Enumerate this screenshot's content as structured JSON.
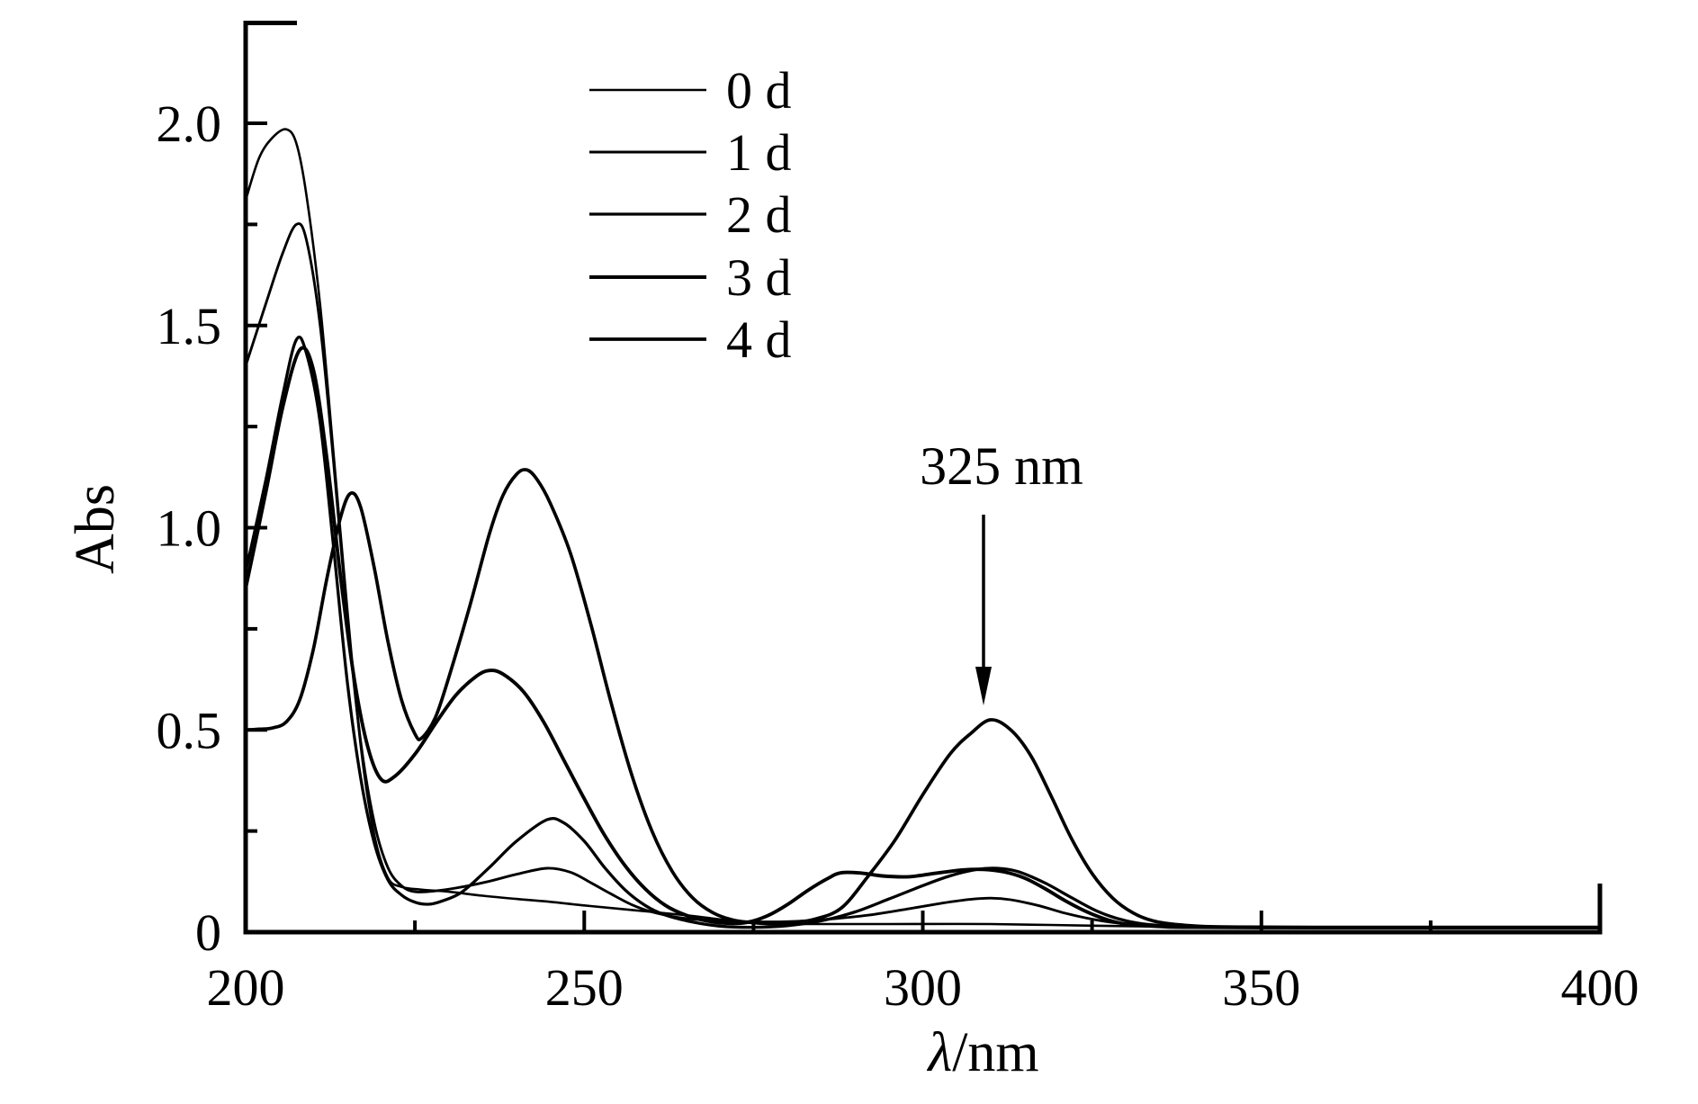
{
  "figure": {
    "background": "#ffffff",
    "ink_color": "#000000"
  },
  "chart_data": {
    "type": "line",
    "title": "",
    "xlabel": "λ/nm",
    "xlabel_symbol": "λ",
    "xlabel_unit": "/nm",
    "ylabel": "Abs",
    "xlim": [
      200,
      400
    ],
    "ylim": [
      0,
      2.0
    ],
    "grid": "off",
    "legend_position": "upper-center",
    "annotation": {
      "text": "325 nm"
    },
    "x_axis": {
      "major_ticks": [
        250,
        300,
        350,
        400
      ],
      "minor_ticks": [
        225,
        275,
        325,
        375
      ],
      "tick_labels": [
        {
          "value": 200,
          "label": "200"
        },
        {
          "value": 250,
          "label": "250"
        },
        {
          "value": 300,
          "label": "300"
        },
        {
          "value": 350,
          "label": "350"
        },
        {
          "value": 400,
          "label": "400"
        }
      ]
    },
    "y_axis": {
      "major_ticks": [
        0.5,
        1.0,
        1.5,
        2.0
      ],
      "minor_ticks": [
        0.25,
        0.75,
        1.25,
        1.75
      ],
      "tick_labels": [
        {
          "value": 0,
          "label": "0"
        },
        {
          "value": 0.5,
          "label": "0.5"
        },
        {
          "value": 1.0,
          "label": "1.0"
        },
        {
          "value": 1.5,
          "label": "1.5"
        },
        {
          "value": 2.0,
          "label": "2.0"
        }
      ]
    },
    "series": [
      {
        "label": "0 d",
        "stroke_width": 2.6,
        "points": [
          [
            200,
            1.81
          ],
          [
            202,
            1.915
          ],
          [
            204,
            1.965
          ],
          [
            206,
            1.985
          ],
          [
            207.5,
            1.95
          ],
          [
            209,
            1.82
          ],
          [
            211,
            1.55
          ],
          [
            213,
            1.18
          ],
          [
            215,
            0.8
          ],
          [
            217,
            0.46
          ],
          [
            219,
            0.24
          ],
          [
            221,
            0.135
          ],
          [
            223,
            0.112
          ],
          [
            226,
            0.105
          ],
          [
            230,
            0.1
          ],
          [
            235,
            0.09
          ],
          [
            240,
            0.082
          ],
          [
            245,
            0.075
          ],
          [
            250,
            0.066
          ],
          [
            255,
            0.058
          ],
          [
            260,
            0.05
          ],
          [
            266,
            0.04
          ],
          [
            272,
            0.028
          ],
          [
            278,
            0.022
          ],
          [
            285,
            0.02
          ],
          [
            295,
            0.02
          ],
          [
            310,
            0.02
          ],
          [
            325,
            0.016
          ],
          [
            340,
            0.013
          ],
          [
            360,
            0.012
          ],
          [
            380,
            0.011
          ],
          [
            400,
            0.011
          ]
        ]
      },
      {
        "label": "1 d",
        "stroke_width": 2.9,
        "points": [
          [
            200,
            1.4
          ],
          [
            203,
            1.555
          ],
          [
            205.5,
            1.68
          ],
          [
            207.5,
            1.75
          ],
          [
            209,
            1.71
          ],
          [
            211,
            1.5
          ],
          [
            213,
            1.16
          ],
          [
            215,
            0.78
          ],
          [
            217,
            0.47
          ],
          [
            219,
            0.27
          ],
          [
            221,
            0.16
          ],
          [
            223,
            0.115
          ],
          [
            225,
            0.1
          ],
          [
            228,
            0.102
          ],
          [
            232,
            0.112
          ],
          [
            236,
            0.126
          ],
          [
            240,
            0.143
          ],
          [
            244.5,
            0.158
          ],
          [
            248,
            0.148
          ],
          [
            251,
            0.122
          ],
          [
            254,
            0.094
          ],
          [
            257,
            0.068
          ],
          [
            260,
            0.05
          ],
          [
            264,
            0.036
          ],
          [
            268,
            0.03
          ],
          [
            274,
            0.026
          ],
          [
            280,
            0.026
          ],
          [
            286,
            0.032
          ],
          [
            292,
            0.042
          ],
          [
            298,
            0.058
          ],
          [
            303,
            0.072
          ],
          [
            307,
            0.081
          ],
          [
            310,
            0.084
          ],
          [
            313,
            0.08
          ],
          [
            317,
            0.066
          ],
          [
            321,
            0.047
          ],
          [
            325,
            0.032
          ],
          [
            329,
            0.022
          ],
          [
            334,
            0.016
          ],
          [
            340,
            0.013
          ],
          [
            360,
            0.011
          ],
          [
            380,
            0.011
          ],
          [
            400,
            0.011
          ]
        ]
      },
      {
        "label": "2 d",
        "stroke_width": 3.3,
        "points": [
          [
            200,
            0.89
          ],
          [
            203,
            1.12
          ],
          [
            205.5,
            1.33
          ],
          [
            207.5,
            1.465
          ],
          [
            209,
            1.43
          ],
          [
            211,
            1.26
          ],
          [
            213,
            0.95
          ],
          [
            215,
            0.62
          ],
          [
            217,
            0.38
          ],
          [
            219,
            0.22
          ],
          [
            221,
            0.13
          ],
          [
            223,
            0.092
          ],
          [
            225,
            0.074
          ],
          [
            227,
            0.069
          ],
          [
            229,
            0.077
          ],
          [
            232,
            0.1
          ],
          [
            236,
            0.16
          ],
          [
            240,
            0.225
          ],
          [
            244.5,
            0.278
          ],
          [
            247,
            0.27
          ],
          [
            250,
            0.225
          ],
          [
            253,
            0.16
          ],
          [
            256,
            0.105
          ],
          [
            259,
            0.066
          ],
          [
            262,
            0.042
          ],
          [
            266,
            0.025
          ],
          [
            270,
            0.015
          ],
          [
            275,
            0.012
          ],
          [
            280,
            0.016
          ],
          [
            285,
            0.028
          ],
          [
            290,
            0.05
          ],
          [
            295,
            0.082
          ],
          [
            300,
            0.115
          ],
          [
            304,
            0.139
          ],
          [
            308,
            0.155
          ],
          [
            311,
            0.158
          ],
          [
            314,
            0.15
          ],
          [
            318,
            0.122
          ],
          [
            322,
            0.085
          ],
          [
            326,
            0.05
          ],
          [
            330,
            0.028
          ],
          [
            334,
            0.018
          ],
          [
            340,
            0.014
          ],
          [
            360,
            0.011
          ],
          [
            380,
            0.011
          ],
          [
            400,
            0.011
          ]
        ]
      },
      {
        "label": "3 d",
        "stroke_width": 3.9,
        "points": [
          [
            200,
            0.85
          ],
          [
            203,
            1.09
          ],
          [
            205.5,
            1.3
          ],
          [
            208,
            1.44
          ],
          [
            210,
            1.39
          ],
          [
            212,
            1.17
          ],
          [
            214,
            0.88
          ],
          [
            216,
            0.63
          ],
          [
            218,
            0.46
          ],
          [
            220,
            0.378
          ],
          [
            222,
            0.385
          ],
          [
            225,
            0.44
          ],
          [
            228,
            0.515
          ],
          [
            231,
            0.585
          ],
          [
            234,
            0.632
          ],
          [
            236,
            0.647
          ],
          [
            238,
            0.638
          ],
          [
            241,
            0.595
          ],
          [
            244,
            0.52
          ],
          [
            247,
            0.425
          ],
          [
            250,
            0.33
          ],
          [
            253,
            0.24
          ],
          [
            256,
            0.165
          ],
          [
            259,
            0.107
          ],
          [
            262,
            0.066
          ],
          [
            265,
            0.042
          ],
          [
            268,
            0.028
          ],
          [
            271,
            0.022
          ],
          [
            274,
            0.024
          ],
          [
            277,
            0.04
          ],
          [
            280,
            0.068
          ],
          [
            283,
            0.103
          ],
          [
            286,
            0.133
          ],
          [
            288,
            0.147
          ],
          [
            291,
            0.146
          ],
          [
            294,
            0.139
          ],
          [
            298,
            0.137
          ],
          [
            302,
            0.146
          ],
          [
            306,
            0.154
          ],
          [
            309,
            0.155
          ],
          [
            312,
            0.149
          ],
          [
            315,
            0.134
          ],
          [
            318,
            0.108
          ],
          [
            321,
            0.078
          ],
          [
            324,
            0.052
          ],
          [
            327,
            0.032
          ],
          [
            330,
            0.02
          ],
          [
            335,
            0.014
          ],
          [
            340,
            0.012
          ],
          [
            360,
            0.011
          ],
          [
            380,
            0.011
          ],
          [
            400,
            0.011
          ]
        ]
      },
      {
        "label": "4 d",
        "stroke_width": 3.7,
        "points": [
          [
            200,
            0.5
          ],
          [
            202,
            0.502
          ],
          [
            204,
            0.505
          ],
          [
            206,
            0.52
          ],
          [
            208,
            0.575
          ],
          [
            210,
            0.7
          ],
          [
            212,
            0.875
          ],
          [
            214,
            1.025
          ],
          [
            215.5,
            1.085
          ],
          [
            217,
            1.05
          ],
          [
            219,
            0.9
          ],
          [
            221,
            0.72
          ],
          [
            223,
            0.575
          ],
          [
            225,
            0.49
          ],
          [
            226,
            0.48
          ],
          [
            228,
            0.53
          ],
          [
            230,
            0.63
          ],
          [
            233,
            0.8
          ],
          [
            236,
            0.985
          ],
          [
            238,
            1.08
          ],
          [
            240,
            1.132
          ],
          [
            241.5,
            1.143
          ],
          [
            243,
            1.12
          ],
          [
            245,
            1.06
          ],
          [
            248,
            0.935
          ],
          [
            251,
            0.76
          ],
          [
            254,
            0.565
          ],
          [
            257,
            0.39
          ],
          [
            260,
            0.25
          ],
          [
            263,
            0.15
          ],
          [
            266,
            0.085
          ],
          [
            269,
            0.048
          ],
          [
            272,
            0.03
          ],
          [
            276,
            0.022
          ],
          [
            280,
            0.022
          ],
          [
            284,
            0.032
          ],
          [
            288,
            0.06
          ],
          [
            292,
            0.14
          ],
          [
            296,
            0.23
          ],
          [
            300,
            0.34
          ],
          [
            304,
            0.44
          ],
          [
            307,
            0.49
          ],
          [
            310,
            0.525
          ],
          [
            313,
            0.5
          ],
          [
            316,
            0.435
          ],
          [
            319,
            0.335
          ],
          [
            322,
            0.23
          ],
          [
            325,
            0.145
          ],
          [
            328,
            0.085
          ],
          [
            331,
            0.048
          ],
          [
            334,
            0.028
          ],
          [
            338,
            0.018
          ],
          [
            344,
            0.013
          ],
          [
            360,
            0.012
          ],
          [
            380,
            0.012
          ],
          [
            400,
            0.012
          ]
        ]
      }
    ]
  }
}
